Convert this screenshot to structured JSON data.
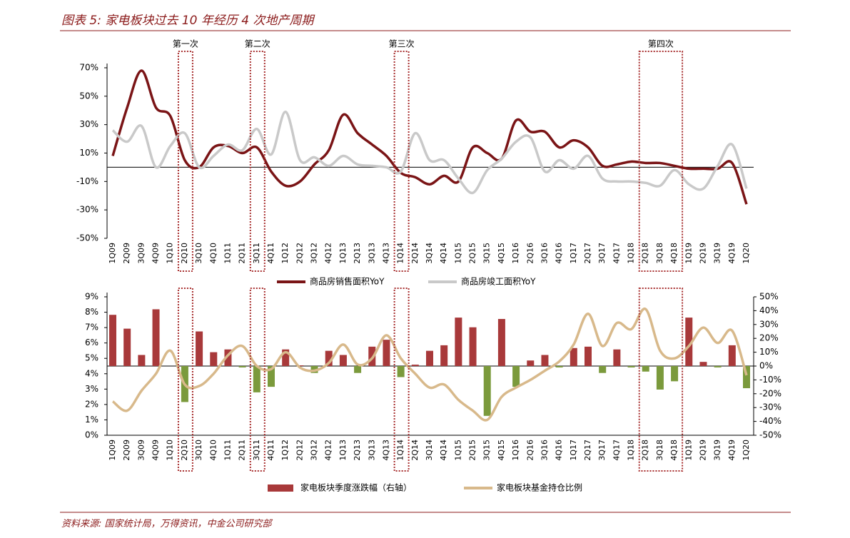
{
  "title": "图表 5: 家电板块过去 10 年经历 4 次地产周期",
  "source": "资料来源: 国家统计局，万得资讯，中金公司研究部",
  "chart_data": [
    {
      "type": "line",
      "categories": [
        "1Q09",
        "2Q09",
        "3Q09",
        "4Q09",
        "1Q10",
        "2Q10",
        "3Q10",
        "4Q10",
        "1Q11",
        "2Q11",
        "3Q11",
        "4Q11",
        "1Q12",
        "2Q12",
        "3Q12",
        "4Q12",
        "1Q13",
        "2Q13",
        "3Q13",
        "4Q13",
        "1Q14",
        "2Q14",
        "3Q14",
        "4Q14",
        "1Q15",
        "2Q15",
        "3Q15",
        "4Q15",
        "1Q16",
        "2Q16",
        "3Q16",
        "4Q16",
        "1Q17",
        "2Q17",
        "3Q17",
        "4Q17",
        "1Q18",
        "2Q18",
        "3Q18",
        "4Q18",
        "1Q19",
        "2Q19",
        "3Q19",
        "4Q19",
        "1Q20"
      ],
      "series": [
        {
          "name": "商品房销售面积YoY",
          "color": "#7a1416",
          "values": [
            8,
            42,
            68,
            42,
            36,
            5,
            0,
            14,
            15,
            10,
            14,
            -3,
            -13,
            -10,
            2,
            12,
            37,
            24,
            16,
            8,
            -4,
            -7,
            -12,
            -6,
            -10,
            14,
            10,
            6,
            33,
            25,
            25,
            14,
            19,
            14,
            1,
            2,
            4,
            3,
            3,
            1,
            -1,
            -1,
            -1,
            3,
            -26
          ]
        },
        {
          "name": "商品房竣工面积YoY",
          "color": "#c9c9c9",
          "values": [
            26,
            18,
            29,
            0,
            15,
            24,
            0,
            8,
            16,
            12,
            27,
            9,
            39,
            5,
            7,
            1,
            8,
            2,
            1,
            0,
            -3,
            24,
            5,
            5,
            -8,
            -18,
            -2,
            6,
            18,
            21,
            -3,
            5,
            -1,
            8,
            -8,
            -10,
            -10,
            -11,
            -13,
            -2,
            -12,
            -15,
            1,
            16,
            -15
          ]
        }
      ],
      "ylim": [
        -50,
        70
      ],
      "yticks": [
        {
          "value": -50,
          "label": "-50%"
        },
        {
          "value": -30,
          "label": "-30%"
        },
        {
          "value": -10,
          "label": "-10%"
        },
        {
          "value": 10,
          "label": "10%"
        },
        {
          "value": 30,
          "label": "30%"
        },
        {
          "value": 50,
          "label": "50%"
        },
        {
          "value": 70,
          "label": "70%"
        }
      ],
      "annotations": [
        {
          "text": "第一次",
          "from": "2Q10",
          "to": "2Q10"
        },
        {
          "text": "第二次",
          "from": "3Q11",
          "to": "3Q11"
        },
        {
          "text": "第三次",
          "from": "1Q14",
          "to": "1Q14"
        },
        {
          "text": "第四次",
          "from": "2Q18",
          "to": "4Q18"
        }
      ]
    },
    {
      "type": "combo",
      "categories": [
        "1Q09",
        "2Q09",
        "3Q09",
        "4Q09",
        "1Q10",
        "2Q10",
        "3Q10",
        "4Q10",
        "1Q11",
        "2Q11",
        "3Q11",
        "4Q11",
        "1Q12",
        "2Q12",
        "3Q12",
        "4Q12",
        "1Q13",
        "2Q13",
        "3Q13",
        "4Q13",
        "1Q14",
        "2Q14",
        "3Q14",
        "4Q14",
        "1Q15",
        "2Q15",
        "3Q15",
        "4Q15",
        "1Q16",
        "2Q16",
        "3Q16",
        "4Q16",
        "1Q17",
        "2Q17",
        "3Q17",
        "4Q17",
        "1Q18",
        "2Q18",
        "3Q18",
        "4Q18",
        "1Q19",
        "2Q19",
        "3Q19",
        "4Q19",
        "1Q20"
      ],
      "series": [
        {
          "name": "家电板块季度涨跌幅（右轴）",
          "type": "bar",
          "axis": "y2",
          "color": "#a8393a",
          "negative_color": "#7b9a3c",
          "values": [
            37,
            27,
            8,
            41,
            null,
            -26,
            25,
            10,
            12,
            -1,
            -19,
            -15,
            12,
            0.5,
            -5,
            11,
            8,
            -5,
            14,
            19,
            -8,
            1,
            11,
            15,
            35,
            28,
            -36,
            34,
            -15,
            4,
            8,
            -1,
            13,
            14,
            -5,
            12,
            -1,
            -4,
            -17,
            -11,
            35,
            3,
            -1,
            15,
            -16
          ]
        },
        {
          "name": "家电板块基金持仓比例",
          "type": "line",
          "color": "#d8b98b",
          "values": [
            2.2,
            1.6,
            2.9,
            4.0,
            5.5,
            3.3,
            3.2,
            4.0,
            5.2,
            5.8,
            4.5,
            4.3,
            5.4,
            4.4,
            4.2,
            4.7,
            5.9,
            4.6,
            5.0,
            6.5,
            5.0,
            4.0,
            3.1,
            3.3,
            2.3,
            1.6,
            1.0,
            2.5,
            3.1,
            3.6,
            4.2,
            4.8,
            5.9,
            7.9,
            5.8,
            7.3,
            6.9,
            8.2,
            5.5,
            5.0,
            5.8,
            7.0,
            6.0,
            6.8,
            3.9
          ]
        }
      ],
      "ylim": [
        0,
        9
      ],
      "yticks": [
        {
          "value": 0,
          "label": "0%"
        },
        {
          "value": 1,
          "label": "1%"
        },
        {
          "value": 2,
          "label": "2%"
        },
        {
          "value": 3,
          "label": "3%"
        },
        {
          "value": 4,
          "label": "4%"
        },
        {
          "value": 5,
          "label": "5%"
        },
        {
          "value": 6,
          "label": "6%"
        },
        {
          "value": 7,
          "label": "7%"
        },
        {
          "value": 8,
          "label": "8%"
        },
        {
          "value": 9,
          "label": "9%"
        }
      ],
      "y2lim": [
        -50,
        50
      ],
      "y2ticks": [
        {
          "value": -50,
          "label": "-50%"
        },
        {
          "value": -40,
          "label": "-40%"
        },
        {
          "value": -30,
          "label": "-30%"
        },
        {
          "value": -20,
          "label": "-20%"
        },
        {
          "value": -10,
          "label": "-10%"
        },
        {
          "value": 0,
          "label": "0%"
        },
        {
          "value": 10,
          "label": "10%"
        },
        {
          "value": 20,
          "label": "20%"
        },
        {
          "value": 30,
          "label": "30%"
        },
        {
          "value": 40,
          "label": "40%"
        },
        {
          "value": 50,
          "label": "50%"
        }
      ]
    }
  ]
}
